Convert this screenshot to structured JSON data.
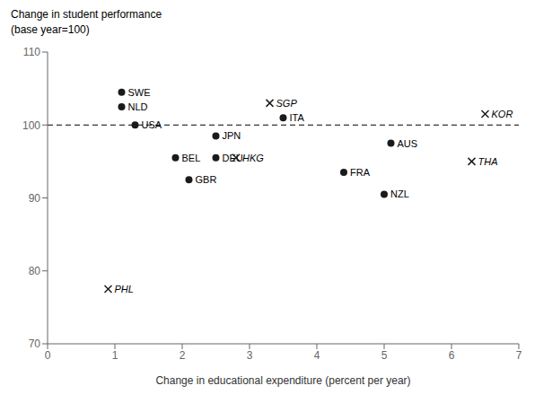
{
  "chart_data": {
    "type": "scatter",
    "ylabel": [
      "Change in student performance",
      "(base year=100)"
    ],
    "xlabel": "Change in educational expenditure (percent per year)",
    "xlim": [
      0,
      7
    ],
    "ylim": [
      70,
      110
    ],
    "xticks": [
      0,
      1,
      2,
      3,
      4,
      5,
      6,
      7
    ],
    "yticks": [
      70,
      80,
      90,
      100,
      110
    ],
    "grid": false,
    "series": [
      {
        "marker": "o",
        "color": "#1a1a1a",
        "labels": [
          "SWE",
          "NLD",
          "USA",
          "BEL",
          "GBR",
          "JPN",
          "DEU",
          "ITA",
          "FRA",
          "AUS",
          "NZL"
        ],
        "x": [
          1.1,
          1.1,
          1.3,
          1.9,
          2.1,
          2.5,
          2.5,
          3.5,
          4.4,
          5.1,
          5.0
        ],
        "values": [
          104.5,
          102.5,
          100.0,
          95.5,
          92.5,
          98.5,
          95.5,
          101.0,
          93.5,
          97.5,
          90.5
        ]
      },
      {
        "marker": "x",
        "color": "#1a1a1a",
        "labels": [
          "PHL",
          "HKG",
          "SGP",
          "KOR",
          "THA"
        ],
        "x": [
          0.9,
          2.8,
          3.3,
          6.5,
          6.3
        ],
        "values": [
          77.5,
          95.5,
          103.0,
          101.5,
          95.0
        ]
      }
    ],
    "reference_lines": [
      {
        "y": 100,
        "line_style": "dashed",
        "color": "#000000"
      }
    ]
  }
}
